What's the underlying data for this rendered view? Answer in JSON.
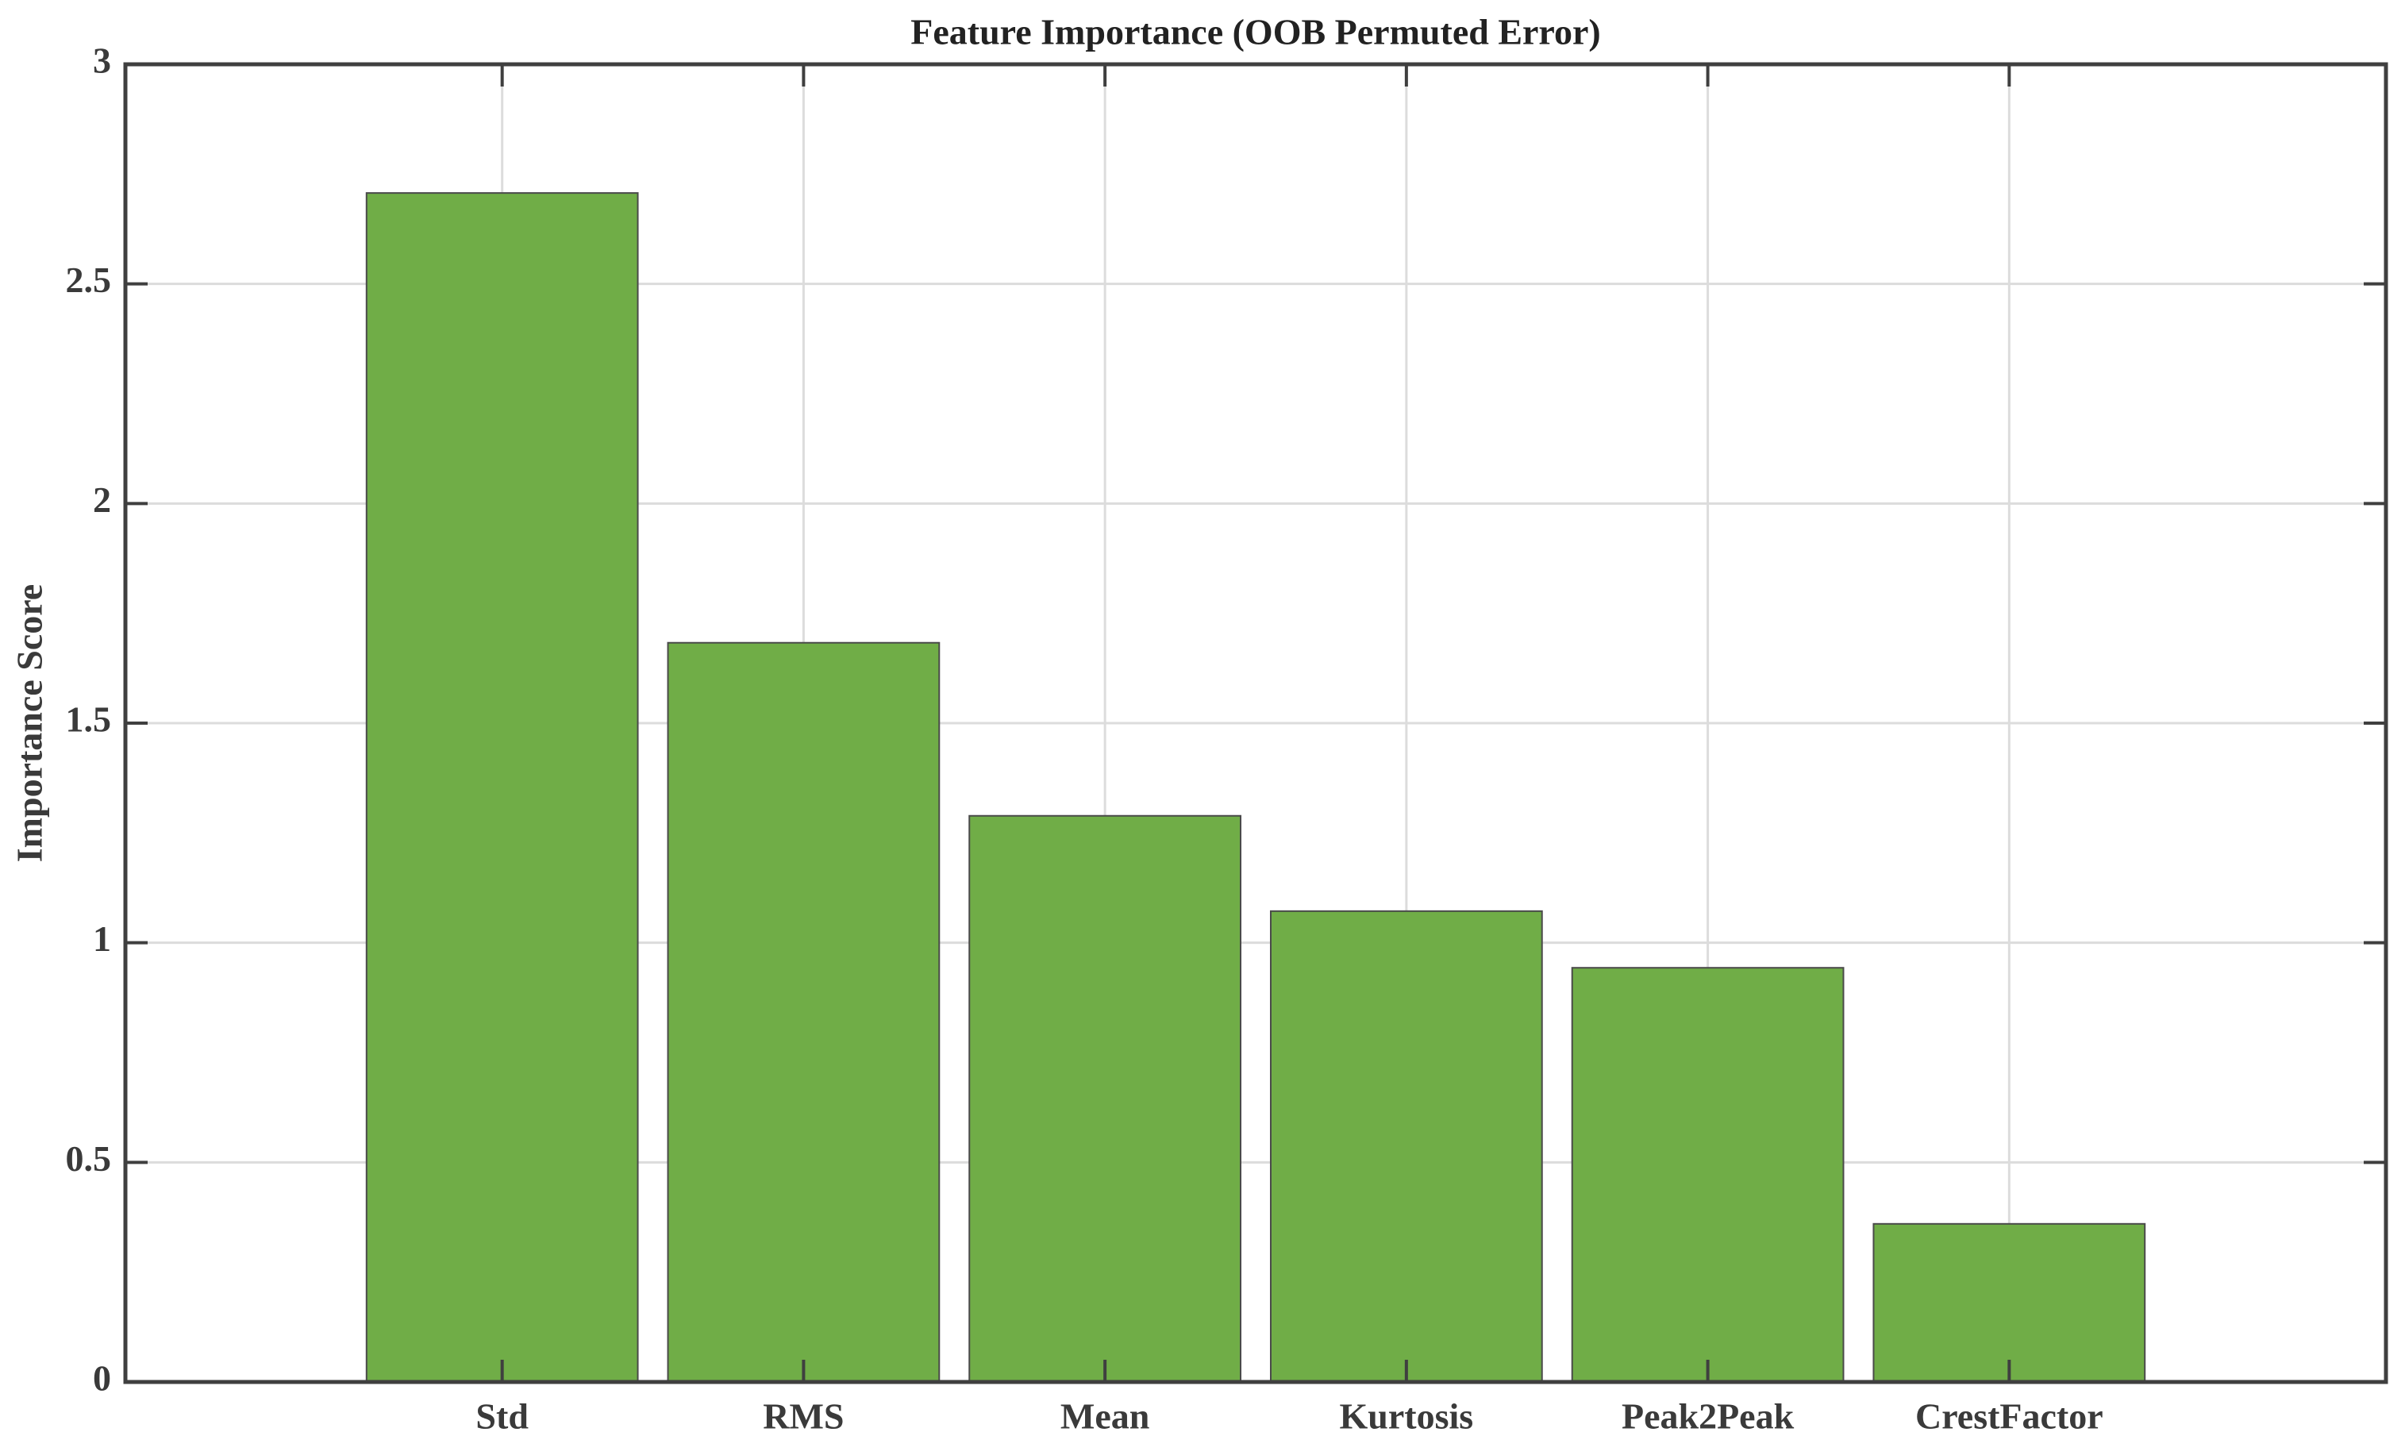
{
  "chart_data": {
    "type": "bar",
    "title": "Feature Importance (OOB Permuted Error)",
    "y_label": "Importance Score",
    "categories": [
      "Std",
      "RMS",
      "Mean",
      "Kurtosis",
      "Peak2Peak",
      "CrestFactor"
    ],
    "values": [
      2.707,
      1.683,
      1.289,
      1.072,
      0.943,
      0.36
    ],
    "color": "#70ad47",
    "ylim": [
      0,
      3
    ],
    "yticks": [
      0,
      0.5,
      1,
      1.5,
      2,
      2.5,
      3
    ],
    "grid": true
  }
}
